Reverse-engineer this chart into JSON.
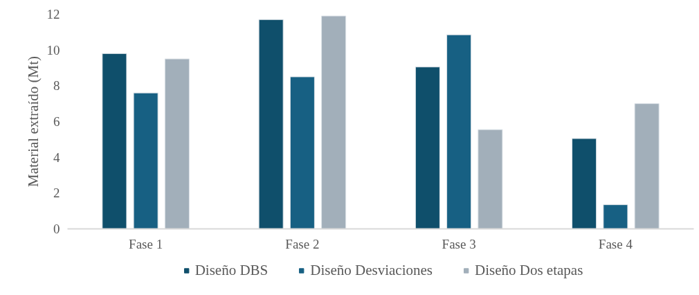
{
  "chart_data": {
    "type": "bar",
    "ylabel": "Material extraído (Mt)",
    "categories": [
      "Fase 1",
      "Fase 2",
      "Fase 3",
      "Fase 4"
    ],
    "series": [
      {
        "name": "Diseño DBS",
        "color": "#0f4f6b",
        "values": [
          9.8,
          11.7,
          9.05,
          5.05
        ]
      },
      {
        "name": "Diseño Desviaciones",
        "color": "#176083",
        "values": [
          7.6,
          8.5,
          10.85,
          1.35
        ]
      },
      {
        "name": "Diseño Dos etapas",
        "color": "#a2afba",
        "values": [
          9.5,
          11.9,
          5.55,
          7.0
        ]
      }
    ],
    "ylim": [
      0,
      12
    ],
    "yticks": [
      0,
      2,
      4,
      6,
      8,
      10,
      12
    ],
    "grid": false,
    "legend": "bottom"
  }
}
